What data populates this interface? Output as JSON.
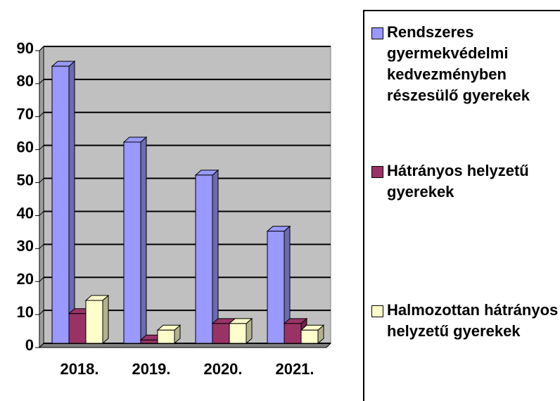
{
  "chart_data": {
    "type": "bar3d",
    "categories": [
      "2018.",
      "2019.",
      "2020.",
      "2021."
    ],
    "series": [
      {
        "name": "Rendszeres gyermekvédelmi kedvezményben részesülő gyerekek",
        "color": "#9999ff",
        "values": [
          84,
          61,
          51,
          34
        ]
      },
      {
        "name": "Hátrányos helyzetű gyerekek",
        "color": "#993366",
        "values": [
          9,
          1,
          6,
          6
        ]
      },
      {
        "name": "Halmozottan hátrányos helyzetű gyerekek",
        "color": "#ffffcc",
        "values": [
          13,
          4,
          6,
          4
        ]
      }
    ],
    "ylim": [
      0,
      90
    ],
    "yticks": [
      0,
      10,
      20,
      30,
      40,
      50,
      60,
      70,
      80,
      90
    ],
    "grid": true,
    "legend": "right"
  }
}
